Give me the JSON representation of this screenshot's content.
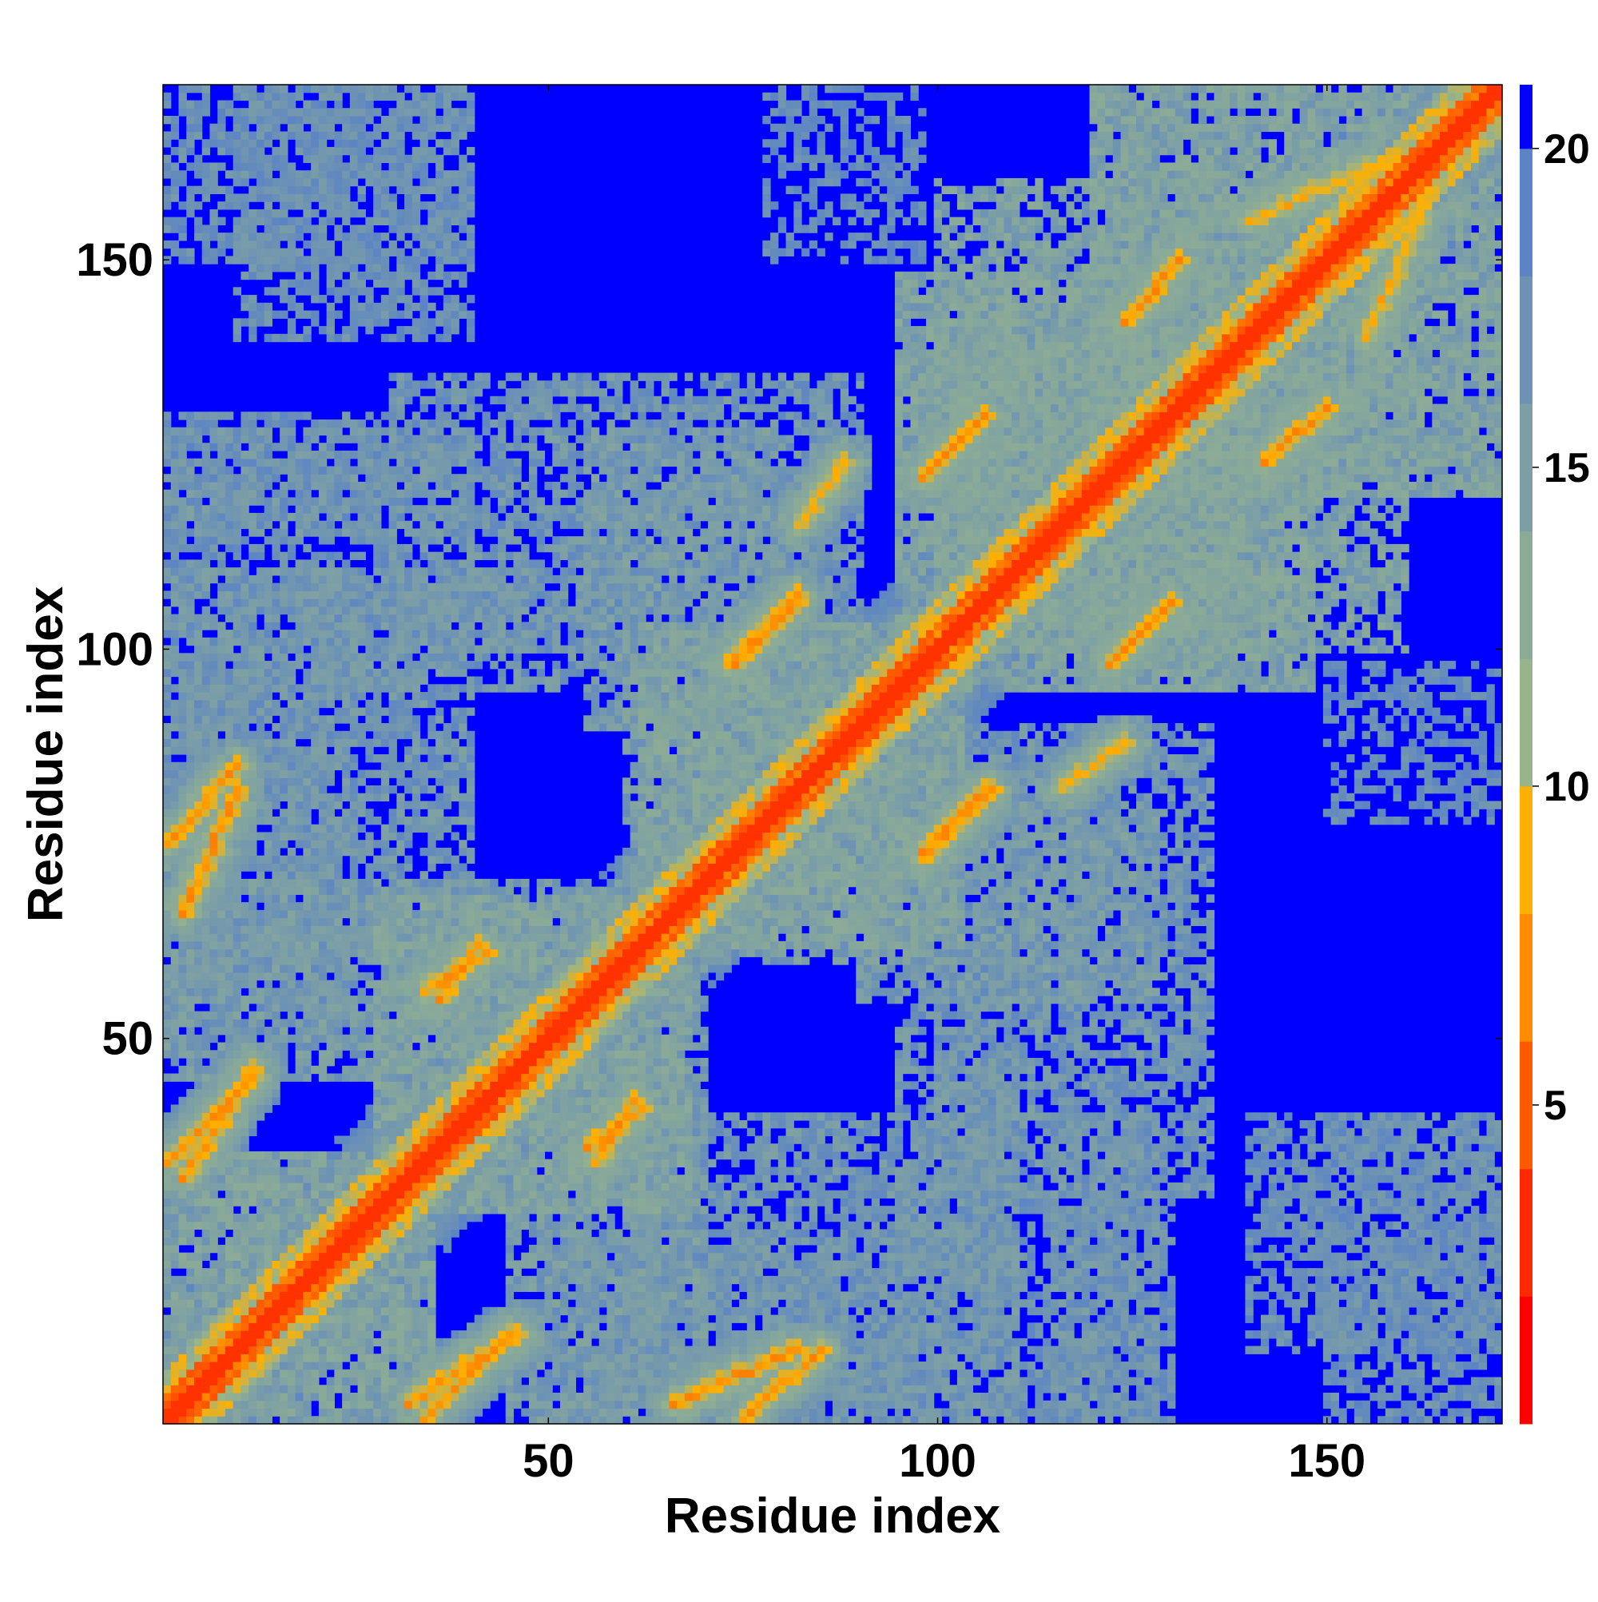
{
  "chart_data": {
    "type": "heatmap",
    "title": "",
    "xlabel": "Residue index",
    "ylabel": "Residue index",
    "x_range": [
      1,
      172
    ],
    "y_range": [
      1,
      172
    ],
    "x_ticks": [
      50,
      100,
      150
    ],
    "y_ticks": [
      50,
      100,
      150
    ],
    "colorbar": {
      "range": [
        0,
        21
      ],
      "ticks": [
        5,
        10,
        15,
        20
      ],
      "bands": [
        {
          "from": 0,
          "to": 2,
          "color": "#ff0000"
        },
        {
          "from": 2,
          "to": 4,
          "color": "#ff2800"
        },
        {
          "from": 4,
          "to": 6,
          "color": "#ff5a00"
        },
        {
          "from": 6,
          "to": 8,
          "color": "#ff8c00"
        },
        {
          "from": 8,
          "to": 10,
          "color": "#ffb000"
        },
        {
          "from": 10,
          "to": 12,
          "color": "#98b48a"
        },
        {
          "from": 12,
          "to": 14,
          "color": "#8aac96"
        },
        {
          "from": 14,
          "to": 16,
          "color": "#7c9fa6"
        },
        {
          "from": 16,
          "to": 18,
          "color": "#6e92b4"
        },
        {
          "from": 18,
          "to": 20,
          "color": "#5c84c4"
        },
        {
          "from": 20,
          "to": 21,
          "color": "#0000ff"
        }
      ]
    },
    "cmap_colors": [
      "#ff0000",
      "#ff5a00",
      "#ffb000",
      "#98b48a",
      "#7c9fa6",
      "#5c84c4",
      "#0000ff"
    ],
    "cmap_breaks": [
      0,
      4.5,
      8,
      10.5,
      15,
      20,
      21
    ],
    "values_description": "Symmetric residue-residue distance map; diagonal ~0-4 (red), secondary-structure contacts 5-9 (orange), neighbourhood 10-20 (green-blue), background >20 (blue)",
    "diagonal_value": 2.5,
    "background_value": 21,
    "contact_patches": [
      {
        "i": [
          1,
          35
        ],
        "j": [
          1,
          35
        ],
        "d": 15
      },
      {
        "i": [
          28,
          68
        ],
        "j": [
          28,
          68
        ],
        "d": 15
      },
      {
        "i": [
          62,
          103
        ],
        "j": [
          62,
          103
        ],
        "d": 15
      },
      {
        "i": [
          95,
          148
        ],
        "j": [
          95,
          148
        ],
        "d": 15
      },
      {
        "i": [
          120,
          172
        ],
        "j": [
          120,
          172
        ],
        "d": 15
      },
      {
        "i": [
          1,
          60
        ],
        "j": [
          45,
          70
        ],
        "d": 16
      },
      {
        "i": [
          1,
          40
        ],
        "j": [
          60,
          110
        ],
        "d": 17
      },
      {
        "i": [
          20,
          55
        ],
        "j": [
          95,
          110
        ],
        "d": 17
      },
      {
        "i": [
          1,
          40
        ],
        "j": [
          115,
          128
        ],
        "d": 17
      },
      {
        "i": [
          10,
          40
        ],
        "j": [
          140,
          172
        ],
        "d": 18
      },
      {
        "i": [
          50,
          110
        ],
        "j": [
          1,
          25
        ],
        "d": 17
      },
      {
        "i": [
          55,
          80
        ],
        "j": [
          90,
          128
        ],
        "d": 16
      },
      {
        "i": [
          70,
          100
        ],
        "j": [
          60,
          95
        ],
        "d": 16
      },
      {
        "i": [
          100,
          135
        ],
        "j": [
          30,
          90
        ],
        "d": 17
      },
      {
        "i": [
          100,
          140
        ],
        "j": [
          100,
          160
        ],
        "d": 15
      },
      {
        "i": [
          150,
          172
        ],
        "j": [
          1,
          40
        ],
        "d": 18
      },
      {
        "i": [
          150,
          172
        ],
        "j": [
          78,
          98
        ],
        "d": 19
      },
      {
        "i": [
          110,
          130
        ],
        "j": [
          1,
          30
        ],
        "d": 18
      }
    ],
    "strands": [
      {
        "i0": 1,
        "j0": 34,
        "i1": 12,
        "j1": 45,
        "d": 6
      },
      {
        "i0": 32,
        "j0": 3,
        "i1": 46,
        "j1": 12,
        "d": 6
      },
      {
        "i0": 66,
        "j0": 3,
        "i1": 82,
        "j1": 10,
        "d": 6
      },
      {
        "i0": 1,
        "j0": 75,
        "i1": 10,
        "j1": 85,
        "d": 6
      },
      {
        "i0": 34,
        "j0": 56,
        "i1": 42,
        "j1": 61,
        "d": 6
      },
      {
        "i0": 55,
        "j0": 36,
        "i1": 62,
        "j1": 41,
        "d": 6
      },
      {
        "i0": 73,
        "j0": 98,
        "i1": 82,
        "j1": 107,
        "d": 6
      },
      {
        "i0": 98,
        "j0": 74,
        "i1": 106,
        "j1": 82,
        "d": 6
      },
      {
        "i0": 98,
        "j0": 122,
        "i1": 106,
        "j1": 130,
        "d": 6
      },
      {
        "i0": 122,
        "j0": 98,
        "i1": 130,
        "j1": 106,
        "d": 6
      },
      {
        "i0": 124,
        "j0": 142,
        "i1": 131,
        "j1": 150,
        "d": 6
      },
      {
        "i0": 142,
        "j0": 124,
        "i1": 150,
        "j1": 131,
        "d": 6
      },
      {
        "i0": 82,
        "j0": 116,
        "i1": 88,
        "j1": 124,
        "d": 7
      },
      {
        "i0": 140,
        "j0": 155,
        "i1": 156,
        "j1": 162,
        "d": 7
      }
    ]
  }
}
